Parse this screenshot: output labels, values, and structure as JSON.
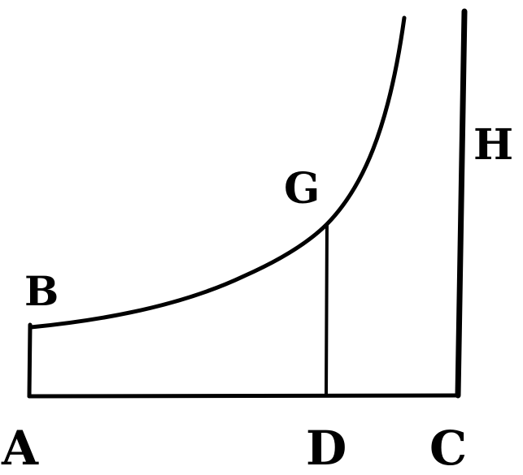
{
  "figure": {
    "labels": {
      "a": "A",
      "b": "B",
      "c": "C",
      "d": "D",
      "g": "G",
      "h": "H"
    },
    "ink_color": "#000000",
    "background_color": "#ffffff"
  }
}
